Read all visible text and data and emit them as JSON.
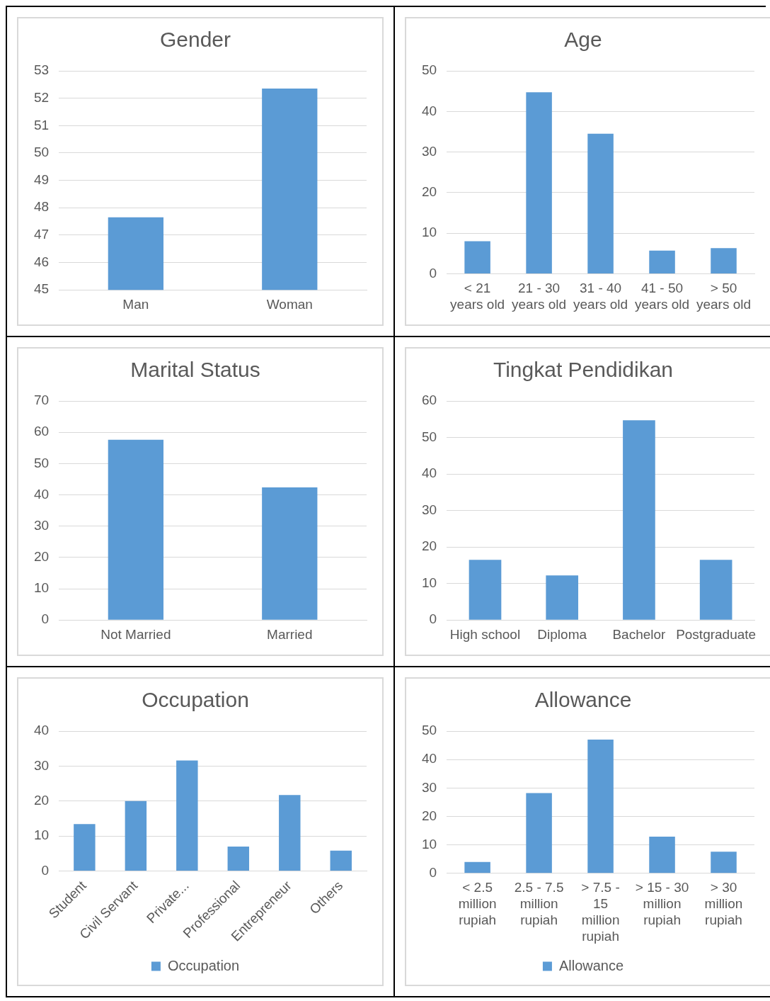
{
  "chart_data": [
    {
      "type": "bar",
      "title": "Gender",
      "categories": [
        "Man",
        "Woman"
      ],
      "values": [
        47.65,
        52.35
      ],
      "color": "#5b9bd5",
      "ylim": [
        45,
        53
      ],
      "yticks": [
        45,
        46,
        47,
        48,
        49,
        50,
        51,
        52,
        53
      ],
      "grid": "y"
    },
    {
      "type": "bar",
      "title": "Age",
      "categories": [
        "< 21 years old",
        "21 - 30 years old",
        "31 - 40 years old",
        "41 - 50 years old",
        "> 50 years old"
      ],
      "values": [
        8,
        44.7,
        34.5,
        5.7,
        6.3
      ],
      "color": "#5b9bd5",
      "ylim": [
        0,
        50
      ],
      "yticks": [
        0,
        10,
        20,
        30,
        40,
        50
      ],
      "grid": "y"
    },
    {
      "type": "bar",
      "title": "Marital Status",
      "categories": [
        "Not Married",
        "Married"
      ],
      "values": [
        57.6,
        42.4
      ],
      "color": "#5b9bd5",
      "ylim": [
        0,
        70
      ],
      "yticks": [
        0,
        10,
        20,
        30,
        40,
        50,
        60,
        70
      ],
      "grid": "y"
    },
    {
      "type": "bar",
      "title": "Tingkat Pendidikan",
      "categories": [
        "High school",
        "Diploma",
        "Bachelor",
        "Postgraduate"
      ],
      "values": [
        16.5,
        12.2,
        54.7,
        16.5
      ],
      "color": "#5b9bd5",
      "ylim": [
        0,
        60
      ],
      "yticks": [
        0,
        10,
        20,
        30,
        40,
        50,
        60
      ],
      "grid": "y"
    },
    {
      "type": "bar",
      "title": "Occupation",
      "categories": [
        "Student",
        "Civil Servant",
        "Private...",
        "Professional",
        "Entrepreneur",
        "Others"
      ],
      "series": [
        {
          "name": "Occupation",
          "color": "#5b9bd5",
          "values": [
            13.4,
            20,
            31.6,
            7,
            21.7,
            5.8
          ]
        }
      ],
      "ylim": [
        0,
        40
      ],
      "yticks": [
        0,
        10,
        20,
        30,
        40
      ],
      "grid": "y",
      "legend": "bottom"
    },
    {
      "type": "bar",
      "title": "Allowance",
      "categories": [
        "< 2.5 million rupiah",
        "2.5 - 7.5 million rupiah",
        "> 7.5 - 15 million rupiah",
        "> 15 - 30 million rupiah",
        "> 30 million rupiah"
      ],
      "series": [
        {
          "name": "Allowance",
          "color": "#5b9bd5",
          "values": [
            4,
            28.2,
            47,
            12.9,
            7.6
          ]
        }
      ],
      "ylim": [
        0,
        50
      ],
      "yticks": [
        0,
        10,
        20,
        30,
        40,
        50
      ],
      "grid": "y",
      "legend": "bottom"
    }
  ]
}
